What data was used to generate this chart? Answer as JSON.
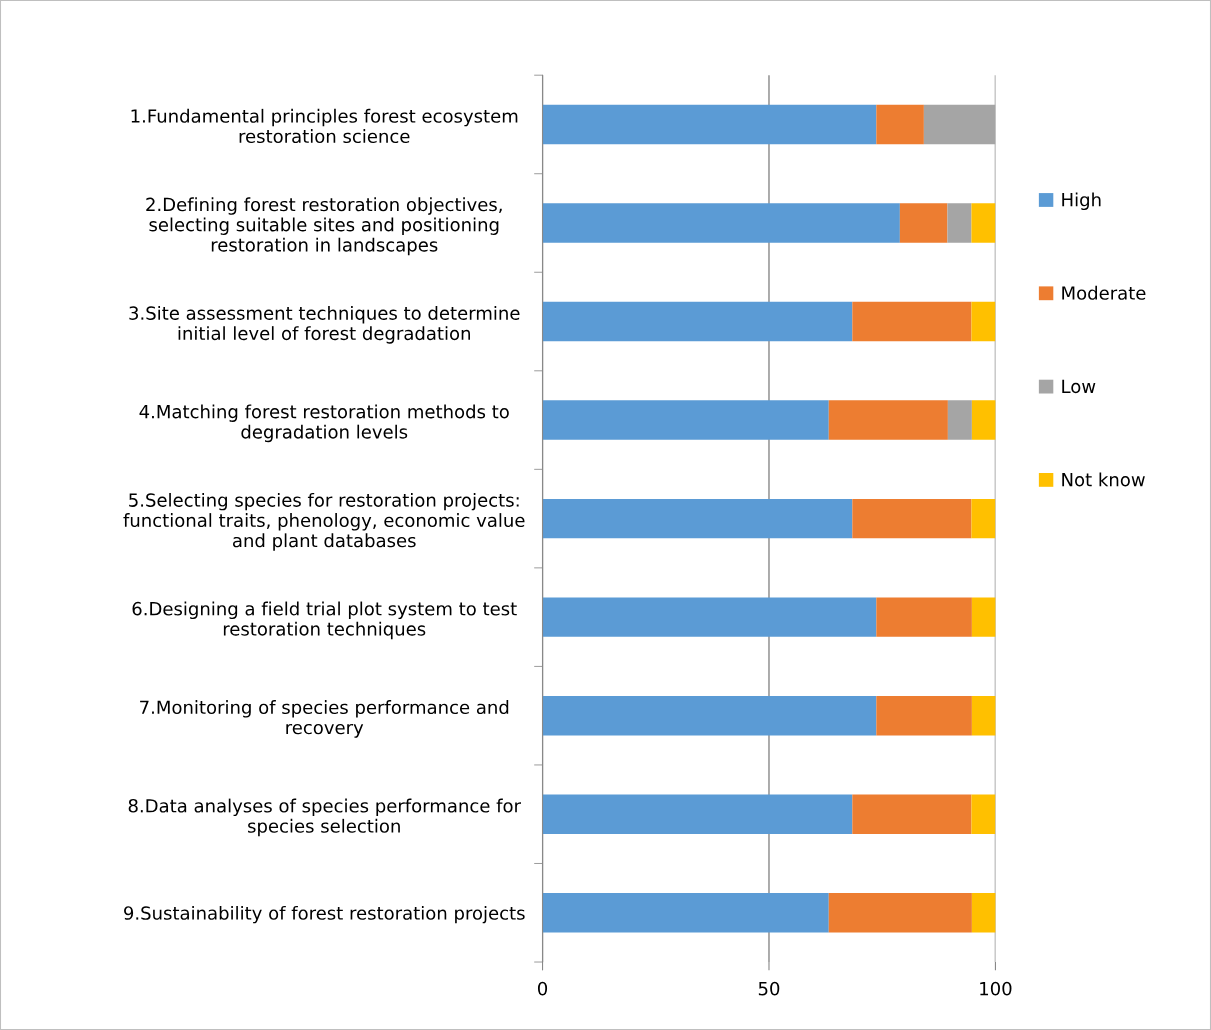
{
  "chart_data": {
    "type": "bar",
    "orientation": "horizontal",
    "stacked": true,
    "categories": [
      "1.Fundamental principles forest ecosystem\nrestoration science",
      "2.Defining forest restoration objectives,\nselecting suitable sites and positioning\nrestoration in landscapes",
      "3.Site assessment techniques to determine\ninitial level of forest degradation",
      "4.Matching forest restoration methods to\ndegradation levels",
      "5.Selecting species for restoration projects:\nfunctional traits, phenology, economic value\nand plant databases",
      "6.Designing a field trial plot system to test\nrestoration techniques",
      "7.Monitoring of species performance and\nrecovery",
      "8.Data analyses of species performance for\nspecies selection",
      "9.Sustainability of forest restoration projects"
    ],
    "series": [
      {
        "name": "High",
        "color": "#5b9bd5",
        "values": [
          73.7,
          78.9,
          68.4,
          63.2,
          68.4,
          73.7,
          73.7,
          68.4,
          63.2
        ]
      },
      {
        "name": "Moderate",
        "color": "#ed7d31",
        "values": [
          10.5,
          10.5,
          26.3,
          26.3,
          26.3,
          21.1,
          21.1,
          26.3,
          31.6
        ]
      },
      {
        "name": "Low",
        "color": "#a5a5a5",
        "values": [
          15.8,
          5.3,
          0,
          5.3,
          0,
          0,
          0,
          0,
          0
        ]
      },
      {
        "name": "Not know",
        "color": "#ffc000",
        "values": [
          0,
          5.3,
          5.3,
          5.3,
          5.3,
          5.3,
          5.3,
          5.3,
          5.3
        ]
      }
    ],
    "xlim": [
      0,
      100
    ],
    "xticks": [
      0,
      50,
      100
    ],
    "grid": "x",
    "legend": "right"
  }
}
